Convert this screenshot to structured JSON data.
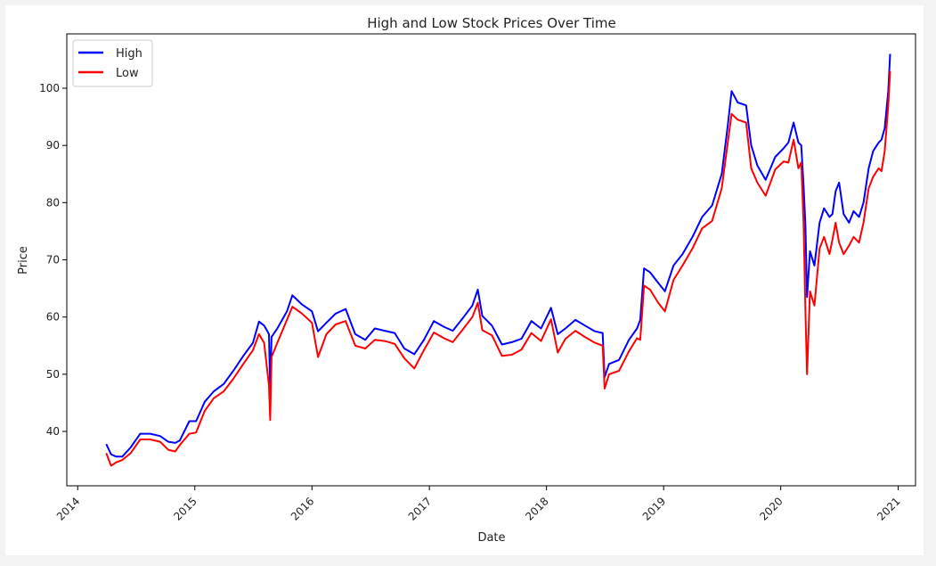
{
  "chart_data": {
    "type": "line",
    "title": "High and Low Stock Prices Over Time",
    "xlabel": "Date",
    "ylabel": "Price",
    "xlim": [
      "2013-11-28",
      "2021-02-24"
    ],
    "ylim": [
      30.5,
      109.5
    ],
    "x_ticks": [
      "2014",
      "2015",
      "2016",
      "2017",
      "2018",
      "2019",
      "2020",
      "2021"
    ],
    "y_ticks": [
      40,
      50,
      60,
      70,
      80,
      90,
      100
    ],
    "grid": false,
    "legend_position": "top-left",
    "colors": {
      "High": "#0000ff",
      "Low": "#ff0000"
    },
    "x": [
      "2014-03-31",
      "2014-04-15",
      "2014-05-01",
      "2014-05-20",
      "2014-06-15",
      "2014-07-15",
      "2014-08-15",
      "2014-09-15",
      "2014-10-10",
      "2014-11-01",
      "2014-11-15",
      "2014-12-15",
      "2015-01-05",
      "2015-02-01",
      "2015-03-01",
      "2015-04-01",
      "2015-05-01",
      "2015-06-01",
      "2015-07-01",
      "2015-07-20",
      "2015-08-05",
      "2015-08-20",
      "2015-08-24",
      "2015-08-28",
      "2015-09-15",
      "2015-10-15",
      "2015-11-01",
      "2015-12-01",
      "2016-01-01",
      "2016-01-20",
      "2016-02-15",
      "2016-03-15",
      "2016-04-15",
      "2016-05-15",
      "2016-06-15",
      "2016-07-15",
      "2016-08-15",
      "2016-09-15",
      "2016-10-15",
      "2016-11-15",
      "2016-12-15",
      "2017-01-15",
      "2017-02-15",
      "2017-03-15",
      "2017-04-15",
      "2017-05-15",
      "2017-06-01",
      "2017-06-15",
      "2017-07-15",
      "2017-08-15",
      "2017-09-15",
      "2017-10-15",
      "2017-11-15",
      "2017-12-15",
      "2018-01-15",
      "2018-02-05",
      "2018-03-01",
      "2018-04-01",
      "2018-05-01",
      "2018-06-01",
      "2018-06-25",
      "2018-07-01",
      "2018-07-15",
      "2018-08-15",
      "2018-09-15",
      "2018-10-10",
      "2018-10-20",
      "2018-11-01",
      "2018-11-20",
      "2018-12-15",
      "2019-01-05",
      "2019-02-01",
      "2019-03-01",
      "2019-04-01",
      "2019-05-01",
      "2019-06-01",
      "2019-07-01",
      "2019-07-20",
      "2019-08-01",
      "2019-08-20",
      "2019-09-15",
      "2019-10-01",
      "2019-10-20",
      "2019-11-15",
      "2019-12-15",
      "2020-01-10",
      "2020-01-25",
      "2020-02-10",
      "2020-02-25",
      "2020-03-05",
      "2020-03-12",
      "2020-03-18",
      "2020-03-23",
      "2020-04-01",
      "2020-04-15",
      "2020-05-01",
      "2020-05-15",
      "2020-06-01",
      "2020-06-10",
      "2020-06-20",
      "2020-07-01",
      "2020-07-15",
      "2020-08-01",
      "2020-08-15",
      "2020-09-01",
      "2020-09-15",
      "2020-10-01",
      "2020-10-15",
      "2020-11-01",
      "2020-11-10",
      "2020-11-20",
      "2020-12-01",
      "2020-12-07"
    ],
    "series": [
      {
        "name": "High",
        "values": [
          37.8,
          36.0,
          35.6,
          35.6,
          37.2,
          39.6,
          39.6,
          39.2,
          38.2,
          38.0,
          38.4,
          41.8,
          41.8,
          45.2,
          47.0,
          48.3,
          50.6,
          53.2,
          55.5,
          59.2,
          58.5,
          57.0,
          47.0,
          56.5,
          58.0,
          61.0,
          63.8,
          62.2,
          61.0,
          57.5,
          59.0,
          60.6,
          61.4,
          57.0,
          56.0,
          58.0,
          57.6,
          57.2,
          54.5,
          53.5,
          56.0,
          59.3,
          58.3,
          57.6,
          59.8,
          62.0,
          64.8,
          60.2,
          58.5,
          55.2,
          55.6,
          56.2,
          59.3,
          58.0,
          61.6,
          57.0,
          58.0,
          59.5,
          58.5,
          57.5,
          57.2,
          49.5,
          51.8,
          52.5,
          56.0,
          58.0,
          59.5,
          68.5,
          67.8,
          66.0,
          64.5,
          69.0,
          71.0,
          74.0,
          77.5,
          79.5,
          85.0,
          93.5,
          99.5,
          97.5,
          97.0,
          90.0,
          86.5,
          84.0,
          88.0,
          89.5,
          90.5,
          94.0,
          90.5,
          90.0,
          83.0,
          76.0,
          63.5,
          71.5,
          69.0,
          76.5,
          79.0,
          77.5,
          78.0,
          82.0,
          83.5,
          78.0,
          76.5,
          78.5,
          77.5,
          80.0,
          86.0,
          89.0,
          90.5,
          91.0,
          93.0,
          99.5,
          106.0
        ]
      },
      {
        "name": "Low",
        "values": [
          36.2,
          34.0,
          34.6,
          35.0,
          36.2,
          38.6,
          38.6,
          38.2,
          36.8,
          36.5,
          37.6,
          39.6,
          39.8,
          43.6,
          45.8,
          47.0,
          49.2,
          51.8,
          54.2,
          57.0,
          55.5,
          48.0,
          42.0,
          53.0,
          55.5,
          59.5,
          61.8,
          60.6,
          59.0,
          53.0,
          57.0,
          58.7,
          59.3,
          55.0,
          54.5,
          56.0,
          55.8,
          55.3,
          52.8,
          51.0,
          54.2,
          57.3,
          56.3,
          55.6,
          57.8,
          60.0,
          62.5,
          57.7,
          56.8,
          53.2,
          53.4,
          54.3,
          57.2,
          55.8,
          59.6,
          53.8,
          56.2,
          57.6,
          56.5,
          55.5,
          55.0,
          47.5,
          50.0,
          50.6,
          54.0,
          56.3,
          56.0,
          65.5,
          64.8,
          62.5,
          61.0,
          66.5,
          69.0,
          72.0,
          75.5,
          76.8,
          82.5,
          90.5,
          95.5,
          94.5,
          94.0,
          86.0,
          83.5,
          81.2,
          85.8,
          87.2,
          87.0,
          91.0,
          86.0,
          87.0,
          76.5,
          61.0,
          50.0,
          64.5,
          62.0,
          72.0,
          74.0,
          71.0,
          73.5,
          76.5,
          73.0,
          71.0,
          72.5,
          74.0,
          73.0,
          76.5,
          82.5,
          84.5,
          86.0,
          85.5,
          89.0,
          97.0,
          103.0
        ]
      }
    ]
  }
}
